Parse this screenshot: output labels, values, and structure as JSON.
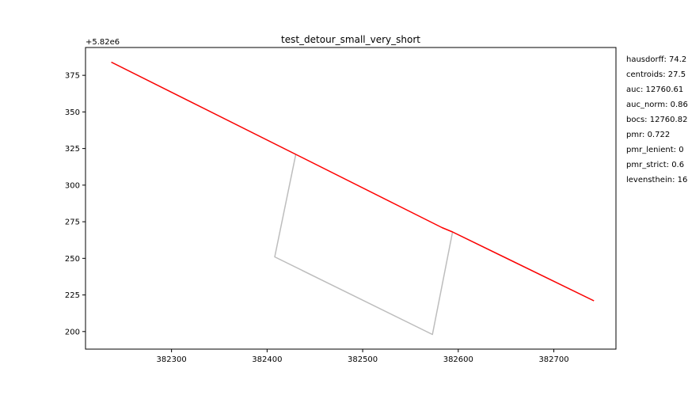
{
  "chart_data": {
    "type": "line",
    "title": "test_detour_small_very_short",
    "y_offset_label": "+5.82e6",
    "xlabel": "",
    "ylabel": "",
    "xlim": [
      382210,
      382765
    ],
    "ylim": [
      188,
      394
    ],
    "x_ticks": [
      382300,
      382400,
      382500,
      382600,
      382700
    ],
    "x_tick_labels": [
      "382300",
      "382400",
      "382500",
      "382600",
      "382700"
    ],
    "y_ticks": [
      200,
      225,
      250,
      275,
      300,
      325,
      350,
      375
    ],
    "y_tick_labels": [
      "200",
      "225",
      "250",
      "275",
      "300",
      "325",
      "350",
      "375"
    ],
    "grid": false,
    "series": [
      {
        "color": "#bdbdbd",
        "x": [
          382237,
          382430,
          382408,
          382573,
          382594,
          382742
        ],
        "y": [
          384,
          321,
          251,
          198,
          268,
          221
        ]
      },
      {
        "color": "#ff0000",
        "x": [
          382237,
          382430,
          382583,
          382594,
          382742
        ],
        "y": [
          384,
          321,
          271,
          268,
          221
        ]
      }
    ],
    "metrics": [
      "hausdorff: 74.2",
      "centroids: 27.5",
      "auc: 12760.61",
      "auc_norm: 0.86",
      "bocs: 12760.82",
      "pmr: 0.722",
      "pmr_lenient: 0",
      "pmr_strict: 0.6",
      "levensthein: 16"
    ]
  }
}
